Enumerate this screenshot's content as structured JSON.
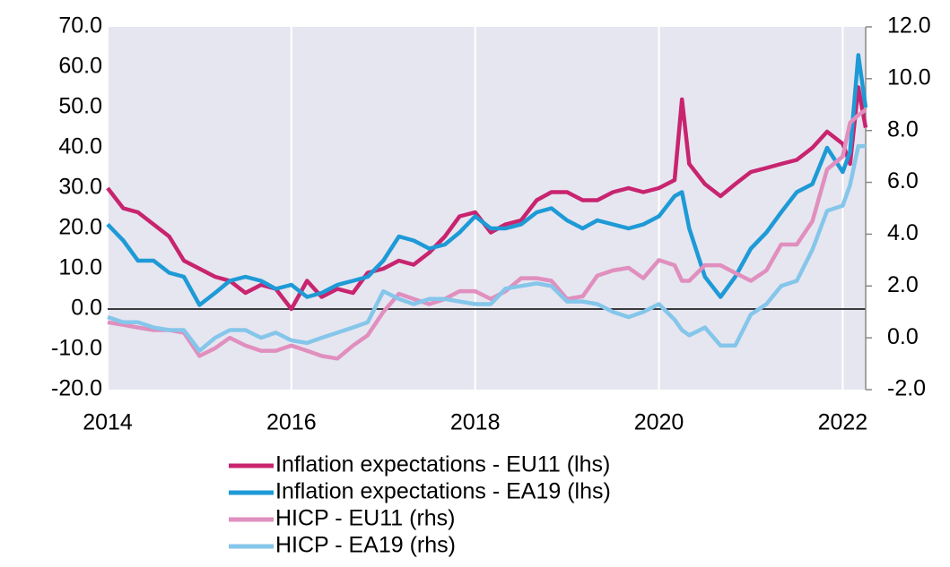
{
  "chart_data": {
    "type": "line",
    "x": [
      2014.0,
      2014.17,
      2014.33,
      2014.5,
      2014.67,
      2014.83,
      2015.0,
      2015.17,
      2015.33,
      2015.5,
      2015.67,
      2015.83,
      2016.0,
      2016.17,
      2016.33,
      2016.5,
      2016.67,
      2016.83,
      2017.0,
      2017.17,
      2017.33,
      2017.5,
      2017.67,
      2017.83,
      2018.0,
      2018.17,
      2018.33,
      2018.5,
      2018.67,
      2018.83,
      2019.0,
      2019.17,
      2019.33,
      2019.5,
      2019.67,
      2019.83,
      2020.0,
      2020.17,
      2020.25,
      2020.33,
      2020.5,
      2020.67,
      2020.83,
      2021.0,
      2021.17,
      2021.33,
      2021.5,
      2021.67,
      2021.83,
      2022.0,
      2022.08,
      2022.17,
      2022.25
    ],
    "series": [
      {
        "name": "Inflation expectations - EU11 (lhs)",
        "color": "#c8246f",
        "values": [
          30,
          25,
          24,
          21,
          18,
          12,
          10,
          8,
          7,
          4,
          6,
          5,
          0,
          7,
          3,
          5,
          4,
          9,
          10,
          12,
          11,
          14,
          18,
          23,
          24,
          19,
          21,
          22,
          27,
          29,
          29,
          27,
          27,
          29,
          30,
          29,
          30,
          32,
          52,
          36,
          31,
          28,
          31,
          34,
          35,
          36,
          37,
          40,
          44,
          41,
          36,
          55,
          45
        ]
      },
      {
        "name": "Inflation expectations - EA19 (lhs)",
        "color": "#1e9ad6",
        "values": [
          21,
          17,
          12,
          12,
          9,
          8,
          1,
          4,
          7,
          8,
          7,
          5,
          6,
          3,
          4,
          6,
          7,
          8,
          12,
          18,
          17,
          15,
          16,
          19,
          23,
          20,
          20,
          21,
          24,
          25,
          22,
          20,
          22,
          21,
          20,
          21,
          23,
          28,
          29,
          20,
          8,
          3,
          8,
          15,
          19,
          24,
          29,
          31,
          40,
          34,
          39,
          63,
          50
        ]
      },
      {
        "name": "HICP - EU11 (rhs)",
        "color": "#e08fbe",
        "axis": "y2",
        "values": [
          0.6,
          0.5,
          0.4,
          0.3,
          0.3,
          0.2,
          -0.7,
          -0.4,
          0.0,
          -0.3,
          -0.5,
          -0.5,
          -0.3,
          -0.5,
          -0.7,
          -0.8,
          -0.3,
          0.1,
          1.0,
          1.7,
          1.5,
          1.3,
          1.5,
          1.8,
          1.8,
          1.5,
          1.8,
          2.3,
          2.3,
          2.2,
          1.5,
          1.6,
          2.4,
          2.6,
          2.7,
          2.3,
          3.0,
          2.8,
          2.2,
          2.2,
          2.8,
          2.8,
          2.5,
          2.2,
          2.6,
          3.6,
          3.6,
          4.5,
          6.5,
          7.0,
          8.3,
          8.6,
          8.8
        ]
      },
      {
        "name": "HICP - EA19 (rhs)",
        "color": "#85c6ea",
        "axis": "y2",
        "values": [
          0.8,
          0.6,
          0.6,
          0.4,
          0.3,
          0.3,
          -0.5,
          0.0,
          0.3,
          0.3,
          0.0,
          0.2,
          -0.1,
          -0.2,
          0.0,
          0.2,
          0.4,
          0.6,
          1.8,
          1.5,
          1.3,
          1.5,
          1.5,
          1.4,
          1.3,
          1.3,
          1.9,
          2.0,
          2.1,
          2.0,
          1.4,
          1.4,
          1.3,
          1.0,
          0.8,
          1.0,
          1.3,
          0.7,
          0.3,
          0.1,
          0.4,
          -0.3,
          -0.3,
          0.9,
          1.3,
          2.0,
          2.2,
          3.4,
          4.9,
          5.1,
          5.9,
          7.4,
          7.4
        ]
      }
    ],
    "xlim": [
      2014,
      2022.25
    ],
    "xticks": [
      2014,
      2016,
      2018,
      2020,
      2022
    ],
    "ylim": [
      -20,
      70
    ],
    "yticks": [
      {
        "value": -20,
        "label": "-20.0"
      },
      {
        "value": -10,
        "label": "-10.0"
      },
      {
        "value": 0,
        "label": "0.0"
      },
      {
        "value": 10,
        "label": "10.0"
      },
      {
        "value": 20,
        "label": "20.0"
      },
      {
        "value": 30,
        "label": "30.0"
      },
      {
        "value": 40,
        "label": "40.0"
      },
      {
        "value": 50,
        "label": "50.0"
      },
      {
        "value": 60,
        "label": "60.0"
      },
      {
        "value": 70,
        "label": "70.0"
      }
    ],
    "y2lim": [
      -2,
      12
    ],
    "y2ticks": [
      {
        "value": -2,
        "label": "-2.0"
      },
      {
        "value": 0,
        "label": "0.0"
      },
      {
        "value": 2,
        "label": "2.0"
      },
      {
        "value": 4,
        "label": "4.0"
      },
      {
        "value": 6,
        "label": "6.0"
      },
      {
        "value": 8,
        "label": "8.0"
      },
      {
        "value": 10,
        "label": "10.0"
      },
      {
        "value": 12,
        "label": "12.0"
      }
    ],
    "grid": true,
    "legend": "bottom"
  }
}
